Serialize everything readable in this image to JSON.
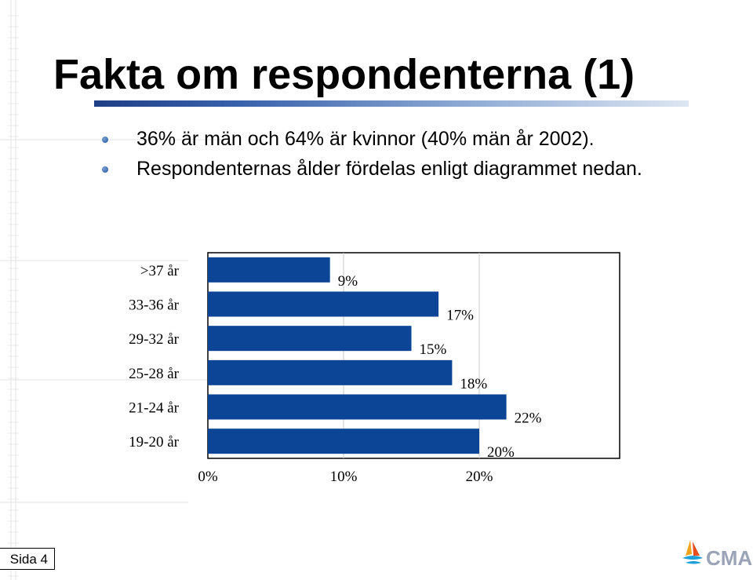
{
  "slide": {
    "title": "Fakta om respondenterna (1)",
    "bullets": [
      "36% är män och 64% är kvinnor (40% män år 2002).",
      "Respondenternas ålder fördelas enligt diagrammet nedan."
    ],
    "footer": "Sida 4",
    "logo_text": "CMA",
    "colors": {
      "accent": "#0d4596",
      "title_bar": "#2a52a0"
    }
  },
  "chart_data": {
    "type": "bar",
    "orientation": "horizontal",
    "categories": [
      ">37 år",
      "33-36 år",
      "29-32 år",
      "25-28 år",
      "21-24 år",
      "19-20 år"
    ],
    "values": [
      9,
      17,
      15,
      18,
      22,
      20
    ],
    "data_labels": [
      "9%",
      "17%",
      "15%",
      "18%",
      "22%",
      "20%"
    ],
    "x_ticks": [
      "0%",
      "10%",
      "20%"
    ],
    "xlim": [
      0,
      30
    ],
    "grid": true,
    "bar_color": "#0d4596",
    "title": "",
    "xlabel": "",
    "ylabel": ""
  }
}
